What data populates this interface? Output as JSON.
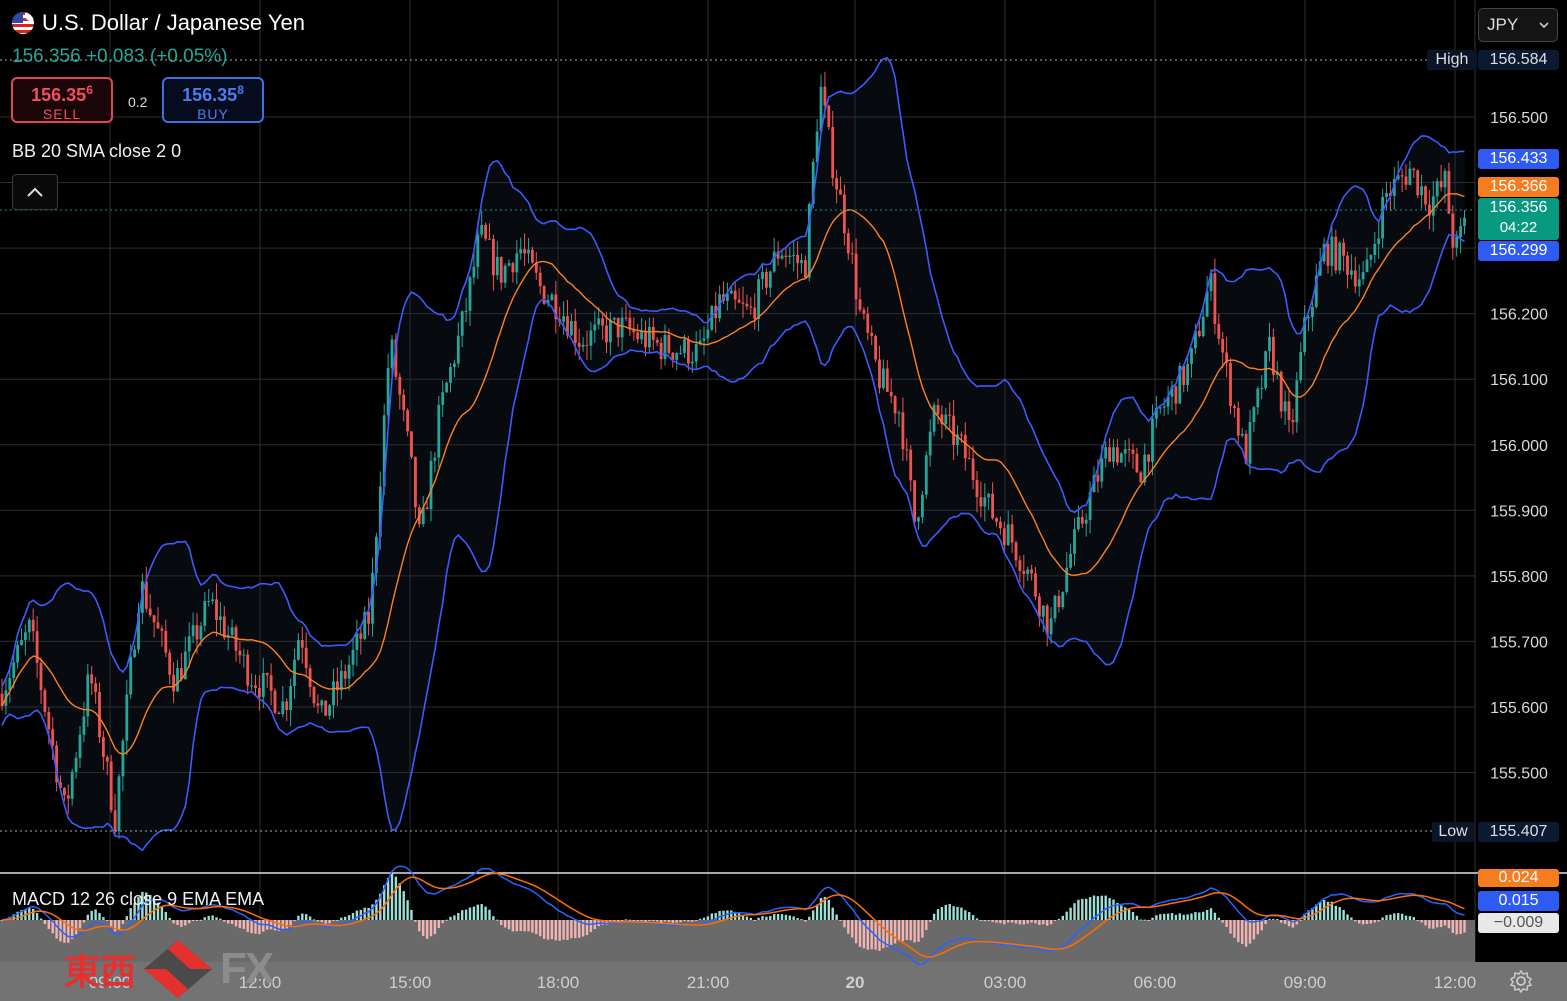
{
  "header": {
    "title": "U.S. Dollar / Japanese Yen",
    "quote": "156.356 +0.083 (+0.05%)",
    "sell_price": "156.35",
    "sell_sup": "6",
    "sell_label": "SELL",
    "buy_price": "156.35",
    "buy_sup": "8",
    "buy_label": "BUY",
    "spread": "0.2",
    "currency": "JPY"
  },
  "indicators": {
    "bb_label": "BB 20 SMA close 2 0",
    "macd_label": "MACD 12 26 close 9 EMA EMA"
  },
  "markers": {
    "high_label": "High",
    "high_value": "156.584",
    "low_label": "Low",
    "low_value": "155.407",
    "upper_band": "156.433",
    "middle_band": "156.366",
    "last_price": "156.356",
    "countdown": "04:22",
    "lower_band": "156.299",
    "macd_signal": "0.024",
    "macd_line": "0.015",
    "macd_hist": "−0.009"
  },
  "branding": {
    "cn": "東西",
    "fx": "FX"
  },
  "colors": {
    "bg": "#000000",
    "up": "#26a69a",
    "down": "#ef5350",
    "band": "#3d5afe",
    "basis": "#ff7f1f",
    "macd": "#2962ff",
    "signal": "#ff6d00",
    "last": "#089981"
  },
  "chart_data": {
    "type": "candlestick",
    "title": "U.S. Dollar / Japanese Yen",
    "ylim": [
      155.35,
      156.64
    ],
    "y_ticks": [
      "155.500",
      "155.600",
      "155.700",
      "155.800",
      "155.900",
      "156.000",
      "156.100",
      "156.200",
      "156.300",
      "156.400",
      "156.500"
    ],
    "x_ticks": [
      "09:00",
      "12:00",
      "15:00",
      "18:00",
      "21:00",
      "20",
      "03:00",
      "06:00",
      "09:00",
      "12:00"
    ],
    "price_path": [
      [
        0,
        155.62
      ],
      [
        30,
        155.72
      ],
      [
        65,
        155.44
      ],
      [
        90,
        155.65
      ],
      [
        115,
        155.43
      ],
      [
        140,
        155.79
      ],
      [
        175,
        155.64
      ],
      [
        210,
        155.76
      ],
      [
        250,
        155.65
      ],
      [
        285,
        155.6
      ],
      [
        300,
        155.72
      ],
      [
        320,
        155.58
      ],
      [
        345,
        155.65
      ],
      [
        370,
        155.74
      ],
      [
        390,
        156.16
      ],
      [
        410,
        155.98
      ],
      [
        420,
        155.85
      ],
      [
        440,
        156.05
      ],
      [
        465,
        156.2
      ],
      [
        480,
        156.32
      ],
      [
        500,
        156.26
      ],
      [
        520,
        156.3
      ],
      [
        540,
        156.24
      ],
      [
        560,
        156.21
      ],
      [
        580,
        156.16
      ],
      [
        620,
        156.18
      ],
      [
        660,
        156.15
      ],
      [
        700,
        156.14
      ],
      [
        720,
        156.22
      ],
      [
        750,
        156.2
      ],
      [
        780,
        156.3
      ],
      [
        805,
        156.27
      ],
      [
        820,
        156.55
      ],
      [
        830,
        156.45
      ],
      [
        850,
        156.3
      ],
      [
        860,
        156.2
      ],
      [
        880,
        156.1
      ],
      [
        900,
        156.05
      ],
      [
        915,
        155.88
      ],
      [
        935,
        156.05
      ],
      [
        960,
        156.0
      ],
      [
        990,
        155.9
      ],
      [
        1010,
        155.86
      ],
      [
        1030,
        155.8
      ],
      [
        1050,
        155.72
      ],
      [
        1070,
        155.83
      ],
      [
        1090,
        155.92
      ],
      [
        1110,
        156.0
      ],
      [
        1140,
        155.96
      ],
      [
        1160,
        156.05
      ],
      [
        1190,
        156.12
      ],
      [
        1210,
        156.25
      ],
      [
        1225,
        156.12
      ],
      [
        1245,
        155.98
      ],
      [
        1270,
        156.15
      ],
      [
        1290,
        156.01
      ],
      [
        1305,
        156.18
      ],
      [
        1325,
        156.3
      ],
      [
        1345,
        156.28
      ],
      [
        1365,
        156.25
      ],
      [
        1385,
        156.38
      ],
      [
        1410,
        156.42
      ],
      [
        1430,
        156.37
      ],
      [
        1445,
        156.4
      ],
      [
        1455,
        156.29
      ],
      [
        1468,
        156.356
      ]
    ]
  }
}
